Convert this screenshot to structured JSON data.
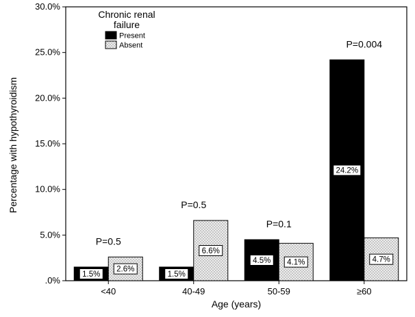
{
  "chart_data": {
    "type": "bar",
    "categories": [
      "<40",
      "40-49",
      "50-59",
      "≥60"
    ],
    "series": [
      {
        "name": "Present",
        "values": [
          1.5,
          1.5,
          4.5,
          24.2
        ],
        "labels": [
          "1.5%",
          "1.5%",
          "4.5%",
          "24.2%"
        ]
      },
      {
        "name": "Absent",
        "values": [
          2.6,
          6.6,
          4.1,
          4.7
        ],
        "labels": [
          "2.6%",
          "6.6%",
          "4.1%",
          "4.7%"
        ]
      }
    ],
    "p_values": [
      "P=0.5",
      "P=0.5",
      "P=0.1",
      "P=0.004"
    ],
    "legend_title": "Chronic renal failure",
    "legend_title_lines": [
      "Chronic renal",
      "failure"
    ],
    "legend_position": "top-left",
    "xlabel": "Age (years)",
    "ylabel": "Percentage with hypothyroidism",
    "yticks": [
      ".0%",
      "5.0%",
      "10.0%",
      "15.0%",
      "20.0%",
      "25.0%",
      "30.0%"
    ],
    "ylim": [
      0,
      30
    ],
    "grid": false,
    "colors": {
      "Present": "#000000",
      "Absent": "#d9d9d9"
    }
  }
}
